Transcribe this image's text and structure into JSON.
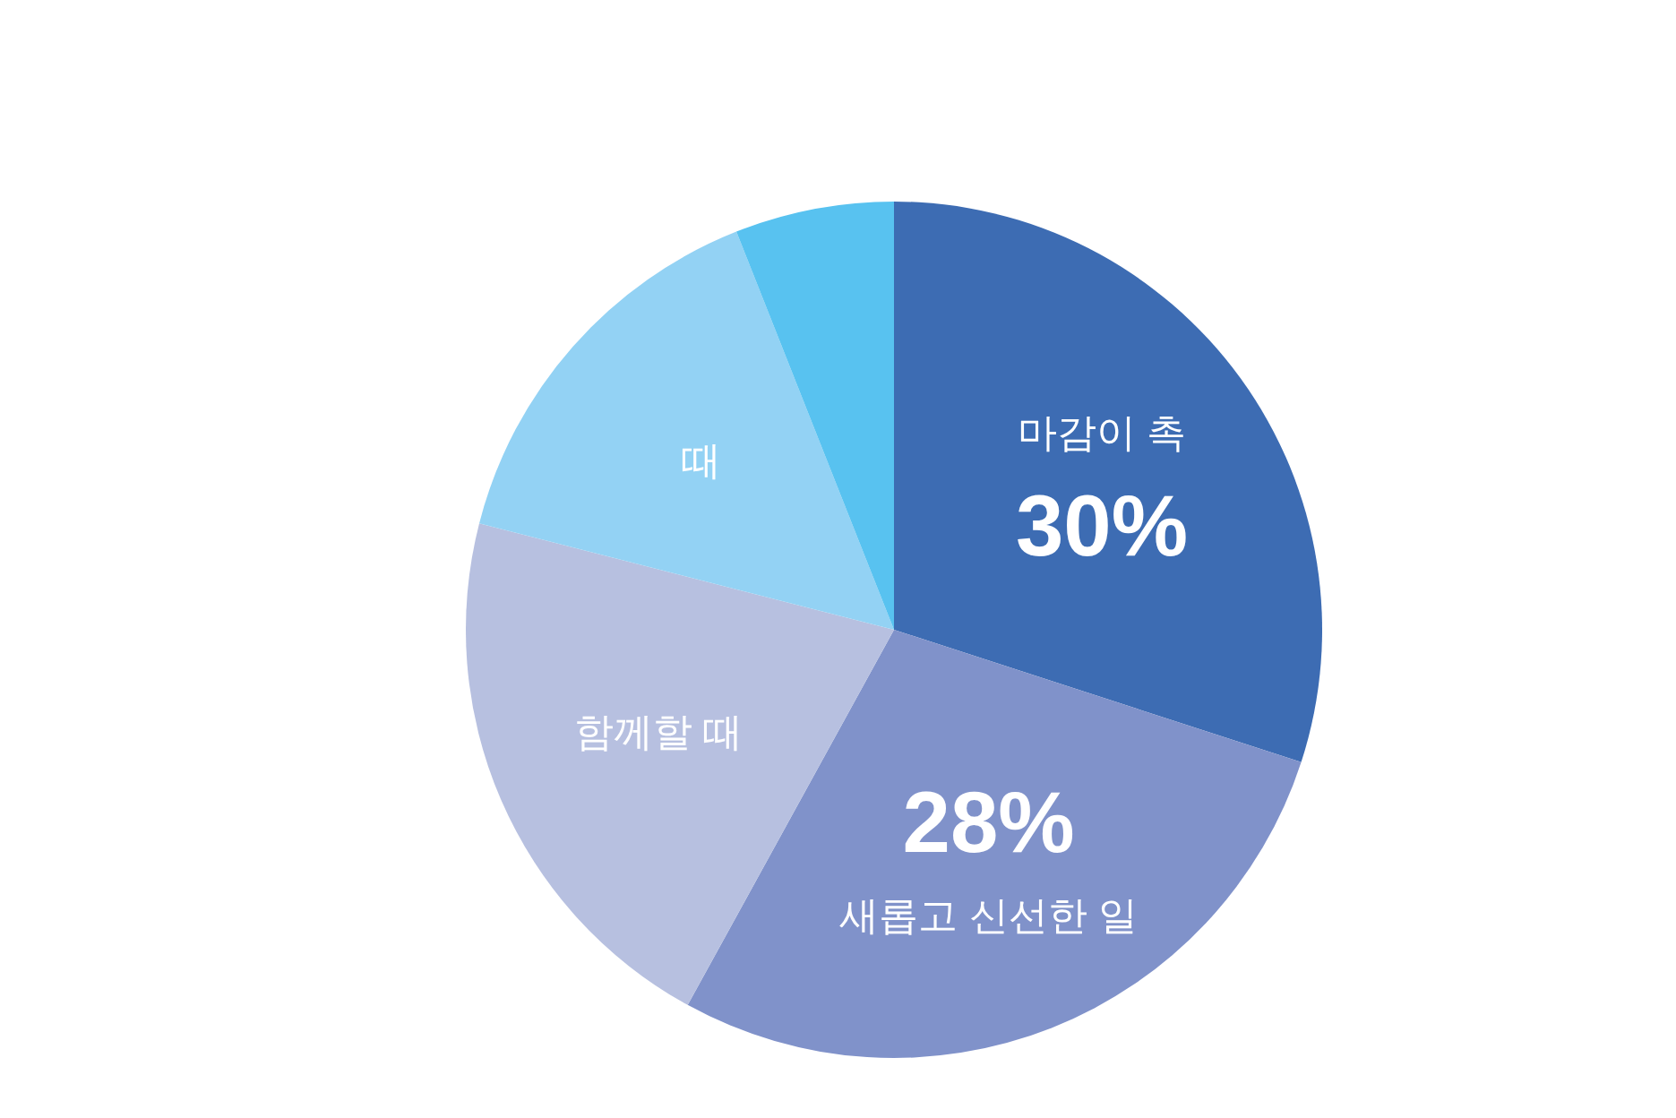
{
  "chart_data": {
    "type": "pie",
    "categories": [
      "마감이 촉",
      "새롭고 신선한 일",
      "함께할 때",
      "때",
      null
    ],
    "values": [
      30,
      28,
      21,
      15,
      6
    ],
    "colors": [
      "#3d6cb3",
      "#8092ca",
      "#b7c0e0",
      "#93d2f4",
      "#58c2f0"
    ],
    "value_labels": [
      "30%",
      "28%",
      null,
      null,
      null
    ]
  }
}
